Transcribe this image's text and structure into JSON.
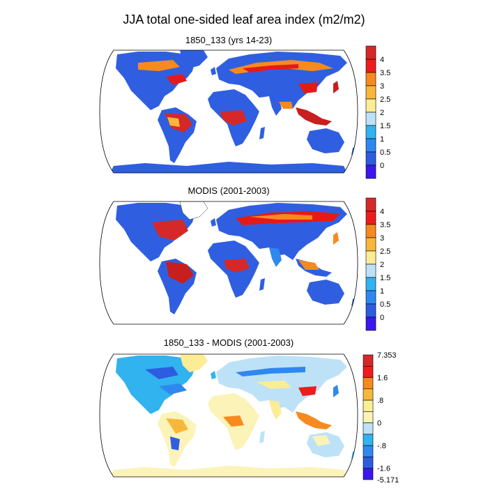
{
  "figure": {
    "title": "JJA total one-sided leaf area index (m2/m2)"
  },
  "panels": [
    {
      "id": "model",
      "title": "1850_133 (yrs 14-23)",
      "colorbar": {
        "labels": [
          "4",
          "3.5",
          "3",
          "2.5",
          "2",
          "1.5",
          "1",
          "0.5",
          "0"
        ],
        "colors": [
          "#d62828",
          "#ee1c1c",
          "#f68a1e",
          "#f8b73a",
          "#fcec96",
          "#bde2f8",
          "#30b3ef",
          "#2f88ef",
          "#2c5ce0",
          "#3c16ee"
        ]
      }
    },
    {
      "id": "modis",
      "title": "MODIS (2001-2003)",
      "colorbar": {
        "labels": [
          "4",
          "3.5",
          "3",
          "2.5",
          "2",
          "1.5",
          "1",
          "0.5",
          "0"
        ],
        "colors": [
          "#d62828",
          "#ee1c1c",
          "#f68a1e",
          "#f8b73a",
          "#fcec96",
          "#bde2f8",
          "#30b3ef",
          "#2f88ef",
          "#2c5ce0",
          "#3c16ee"
        ]
      }
    },
    {
      "id": "diff",
      "title": "1850_133 - MODIS (2001-2003)",
      "colorbar": {
        "max_label": "7.353",
        "min_label": "-5.171",
        "labels": [
          "1.6",
          ".8",
          "0",
          "-.8",
          "-1.6"
        ],
        "colors": [
          "#d62828",
          "#ee1c1c",
          "#f68a1e",
          "#f8b73a",
          "#fcec96",
          "#fcf3b8",
          "#bde2f8",
          "#30b3ef",
          "#2f88ef",
          "#2c5ce0",
          "#3c16ee"
        ]
      }
    }
  ]
}
